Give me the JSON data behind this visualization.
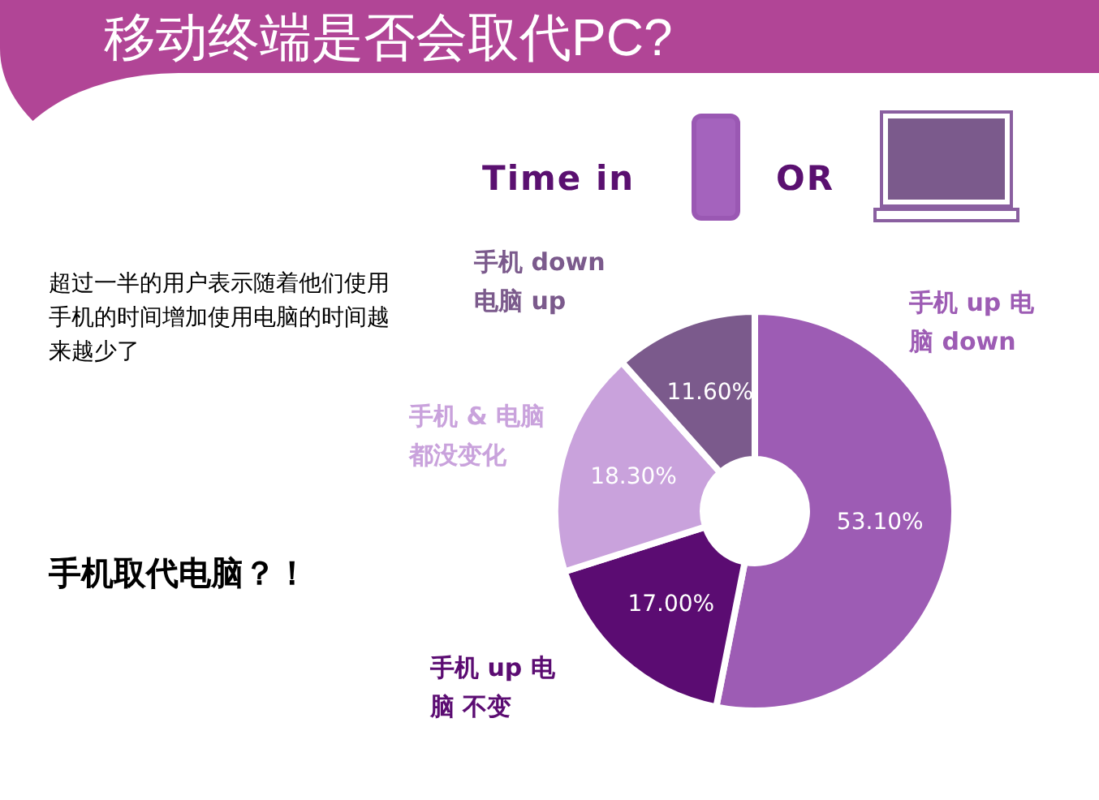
{
  "chart_data": {
    "type": "donut",
    "title": "移动终端是否会取代PC?",
    "categories": [
      "手机 up 电脑 down",
      "手机 up 电脑 不变",
      "手机 & 电脑都没变化",
      "手机 down 电脑 up"
    ],
    "values": [
      53.1,
      17.0,
      18.3,
      11.6
    ],
    "colors": [
      "#9d5cb4",
      "#5b0c72",
      "#c9a2dc",
      "#7b5a8c"
    ],
    "value_labels": [
      "53.10%",
      "17.00%",
      "18.30%",
      "11.60%"
    ],
    "annotations": [
      "Time in",
      "OR",
      "超过一半的用户表示随着他们使用手机的时间增加使用电脑的时间越来越少了",
      "手机取代电脑？！"
    ],
    "legend": false
  }
}
